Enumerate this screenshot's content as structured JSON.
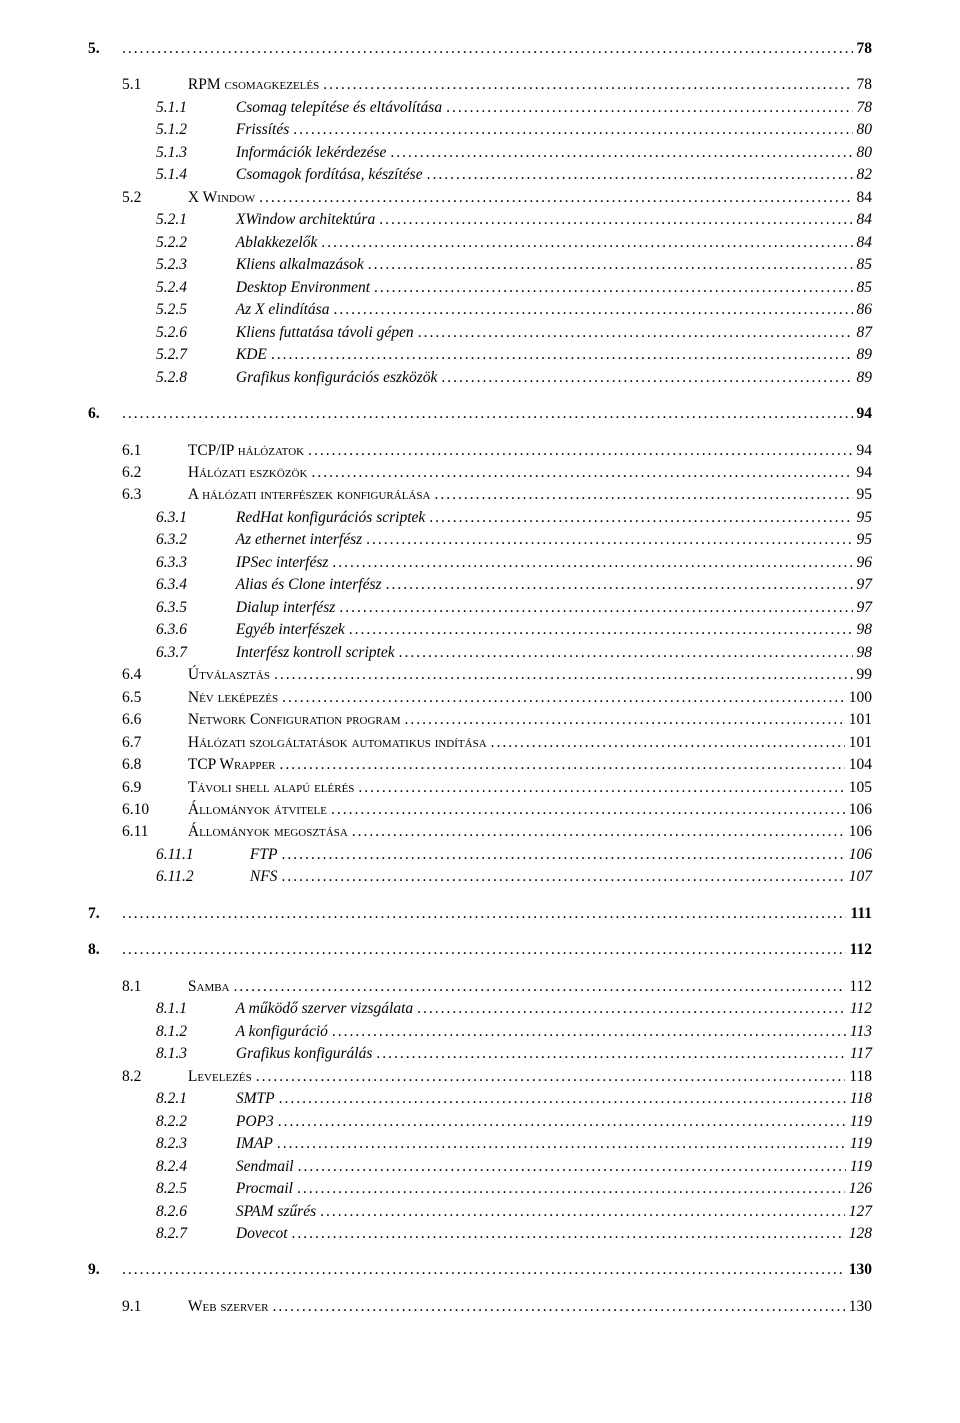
{
  "toc": [
    {
      "level": 0,
      "bold": true,
      "italic": false,
      "smallcaps": false,
      "num": "5.",
      "title": "",
      "page": "78"
    },
    {
      "gap": true
    },
    {
      "level": 1,
      "bold": false,
      "italic": false,
      "smallcaps": true,
      "num": "5.1",
      "title": "RPM csomagkezelés",
      "page": "78"
    },
    {
      "level": 2,
      "bold": false,
      "italic": true,
      "smallcaps": false,
      "num": "5.1.1",
      "title": "Csomag telepítése és eltávolítása",
      "page": "78"
    },
    {
      "level": 2,
      "bold": false,
      "italic": true,
      "smallcaps": false,
      "num": "5.1.2",
      "title": "Frissítés",
      "page": "80"
    },
    {
      "level": 2,
      "bold": false,
      "italic": true,
      "smallcaps": false,
      "num": "5.1.3",
      "title": "Információk lekérdezése",
      "page": "80"
    },
    {
      "level": 2,
      "bold": false,
      "italic": true,
      "smallcaps": false,
      "num": "5.1.4",
      "title": "Csomagok fordítása, készítése",
      "page": "82"
    },
    {
      "level": 1,
      "bold": false,
      "italic": false,
      "smallcaps": true,
      "num": "5.2",
      "title": "X Window",
      "page": "84"
    },
    {
      "level": 2,
      "bold": false,
      "italic": true,
      "smallcaps": false,
      "num": "5.2.1",
      "title": "XWindow architektúra",
      "page": "84"
    },
    {
      "level": 2,
      "bold": false,
      "italic": true,
      "smallcaps": false,
      "num": "5.2.2",
      "title": "Ablakkezelők",
      "page": "84"
    },
    {
      "level": 2,
      "bold": false,
      "italic": true,
      "smallcaps": false,
      "num": "5.2.3",
      "title": "Kliens alkalmazások",
      "page": "85"
    },
    {
      "level": 2,
      "bold": false,
      "italic": true,
      "smallcaps": false,
      "num": "5.2.4",
      "title": "Desktop Environment",
      "page": "85"
    },
    {
      "level": 2,
      "bold": false,
      "italic": true,
      "smallcaps": false,
      "num": "5.2.5",
      "title": "Az X elindítása",
      "page": "86"
    },
    {
      "level": 2,
      "bold": false,
      "italic": true,
      "smallcaps": false,
      "num": "5.2.6",
      "title": "Kliens futtatása távoli gépen",
      "page": "87"
    },
    {
      "level": 2,
      "bold": false,
      "italic": true,
      "smallcaps": false,
      "num": "5.2.7",
      "title": "KDE",
      "page": "89"
    },
    {
      "level": 2,
      "bold": false,
      "italic": true,
      "smallcaps": false,
      "num": "5.2.8",
      "title": "Grafikus konfigurációs eszközök",
      "page": "89"
    },
    {
      "gap": true
    },
    {
      "level": 0,
      "bold": true,
      "italic": false,
      "smallcaps": false,
      "num": "6.",
      "title": "",
      "page": "94"
    },
    {
      "gap": true
    },
    {
      "level": 1,
      "bold": false,
      "italic": false,
      "smallcaps": true,
      "num": "6.1",
      "title": "TCP/IP hálózatok",
      "page": "94"
    },
    {
      "level": 1,
      "bold": false,
      "italic": false,
      "smallcaps": true,
      "num": "6.2",
      "title": "Hálózati eszközök",
      "page": "94"
    },
    {
      "level": 1,
      "bold": false,
      "italic": false,
      "smallcaps": true,
      "num": "6.3",
      "title": "A hálózati interfészek konfigurálása",
      "page": "95"
    },
    {
      "level": 2,
      "bold": false,
      "italic": true,
      "smallcaps": false,
      "num": "6.3.1",
      "title": "RedHat konfigurációs scriptek",
      "page": "95"
    },
    {
      "level": 2,
      "bold": false,
      "italic": true,
      "smallcaps": false,
      "num": "6.3.2",
      "title": "Az ethernet interfész",
      "page": "95"
    },
    {
      "level": 2,
      "bold": false,
      "italic": true,
      "smallcaps": false,
      "num": "6.3.3",
      "title": "IPSec interfész",
      "page": "96"
    },
    {
      "level": 2,
      "bold": false,
      "italic": true,
      "smallcaps": false,
      "num": "6.3.4",
      "title": "Alias és Clone interfész",
      "page": "97"
    },
    {
      "level": 2,
      "bold": false,
      "italic": true,
      "smallcaps": false,
      "num": "6.3.5",
      "title": "Dialup interfész",
      "page": "97"
    },
    {
      "level": 2,
      "bold": false,
      "italic": true,
      "smallcaps": false,
      "num": "6.3.6",
      "title": "Egyéb interfészek",
      "page": "98"
    },
    {
      "level": 2,
      "bold": false,
      "italic": true,
      "smallcaps": false,
      "num": "6.3.7",
      "title": "Interfész kontroll scriptek",
      "page": "98"
    },
    {
      "level": 1,
      "bold": false,
      "italic": false,
      "smallcaps": true,
      "num": "6.4",
      "title": "Útválasztás",
      "page": "99"
    },
    {
      "level": 1,
      "bold": false,
      "italic": false,
      "smallcaps": true,
      "num": "6.5",
      "title": "Név leképezés",
      "page": "100"
    },
    {
      "level": 1,
      "bold": false,
      "italic": false,
      "smallcaps": true,
      "num": "6.6",
      "title": "Network Configuration program",
      "page": "101"
    },
    {
      "level": 1,
      "bold": false,
      "italic": false,
      "smallcaps": true,
      "num": "6.7",
      "title": "Hálózati szolgáltatások automatikus indítása",
      "page": "101"
    },
    {
      "level": 1,
      "bold": false,
      "italic": false,
      "smallcaps": true,
      "num": "6.8",
      "title": "TCP Wrapper",
      "page": "104"
    },
    {
      "level": 1,
      "bold": false,
      "italic": false,
      "smallcaps": true,
      "num": "6.9",
      "title": "Távoli shell alapú elérés",
      "page": "105"
    },
    {
      "level": 1,
      "bold": false,
      "italic": false,
      "smallcaps": true,
      "num": "6.10",
      "title": "Állományok átvitele",
      "page": "106"
    },
    {
      "level": 1,
      "bold": false,
      "italic": false,
      "smallcaps": true,
      "num": "6.11",
      "title": "Állományok megosztása",
      "page": "106"
    },
    {
      "level": 2,
      "bold": false,
      "italic": true,
      "smallcaps": false,
      "num": "6.11.1",
      "title": "FTP",
      "page": "106",
      "wideNum": true
    },
    {
      "level": 2,
      "bold": false,
      "italic": true,
      "smallcaps": false,
      "num": "6.11.2",
      "title": "NFS",
      "page": "107",
      "wideNum": true
    },
    {
      "gap": true
    },
    {
      "level": 0,
      "bold": true,
      "italic": false,
      "smallcaps": false,
      "num": "7.",
      "title": "",
      "page": "111"
    },
    {
      "gap": true
    },
    {
      "level": 0,
      "bold": true,
      "italic": false,
      "smallcaps": false,
      "num": "8.",
      "title": "",
      "page": "112"
    },
    {
      "gap": true
    },
    {
      "level": 1,
      "bold": false,
      "italic": false,
      "smallcaps": true,
      "num": "8.1",
      "title": "Samba",
      "page": "112"
    },
    {
      "level": 2,
      "bold": false,
      "italic": true,
      "smallcaps": false,
      "num": "8.1.1",
      "title": "A működő szerver vizsgálata",
      "page": "112"
    },
    {
      "level": 2,
      "bold": false,
      "italic": true,
      "smallcaps": false,
      "num": "8.1.2",
      "title": "A konfiguráció",
      "page": "113"
    },
    {
      "level": 2,
      "bold": false,
      "italic": true,
      "smallcaps": false,
      "num": "8.1.3",
      "title": "Grafikus konfigurálás",
      "page": "117"
    },
    {
      "level": 1,
      "bold": false,
      "italic": false,
      "smallcaps": true,
      "num": "8.2",
      "title": "Levelezés",
      "page": "118"
    },
    {
      "level": 2,
      "bold": false,
      "italic": true,
      "smallcaps": false,
      "num": "8.2.1",
      "title": "SMTP",
      "page": "118"
    },
    {
      "level": 2,
      "bold": false,
      "italic": true,
      "smallcaps": false,
      "num": "8.2.2",
      "title": "POP3",
      "page": "119"
    },
    {
      "level": 2,
      "bold": false,
      "italic": true,
      "smallcaps": false,
      "num": "8.2.3",
      "title": "IMAP",
      "page": "119"
    },
    {
      "level": 2,
      "bold": false,
      "italic": true,
      "smallcaps": false,
      "num": "8.2.4",
      "title": "Sendmail",
      "page": "119"
    },
    {
      "level": 2,
      "bold": false,
      "italic": true,
      "smallcaps": false,
      "num": "8.2.5",
      "title": "Procmail",
      "page": "126"
    },
    {
      "level": 2,
      "bold": false,
      "italic": true,
      "smallcaps": false,
      "num": "8.2.6",
      "title": "SPAM szűrés",
      "page": "127"
    },
    {
      "level": 2,
      "bold": false,
      "italic": true,
      "smallcaps": false,
      "num": "8.2.7",
      "title": "Dovecot",
      "page": "128"
    },
    {
      "gap": true
    },
    {
      "level": 0,
      "bold": true,
      "italic": false,
      "smallcaps": false,
      "num": "9.",
      "title": "",
      "page": "130"
    },
    {
      "gap": true
    },
    {
      "level": 1,
      "bold": false,
      "italic": false,
      "smallcaps": true,
      "num": "9.1",
      "title": "Web szerver",
      "page": "130"
    }
  ]
}
